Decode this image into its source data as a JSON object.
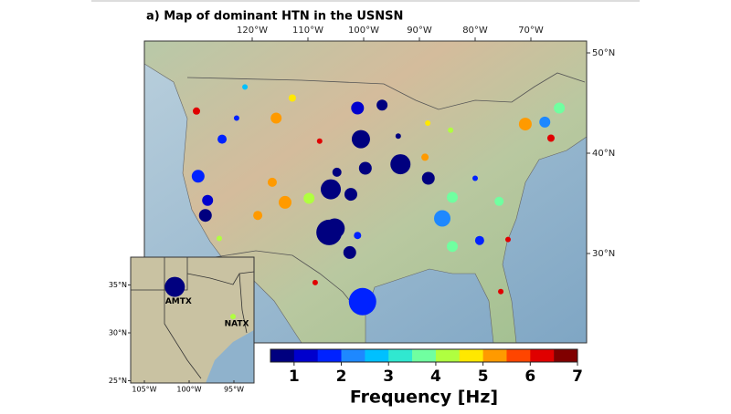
{
  "map": {
    "title": "a) Map of dominant HTN in the USNSN",
    "lon_ticks": [
      {
        "value": -120,
        "label": "120°W"
      },
      {
        "value": -110,
        "label": "110°W"
      },
      {
        "value": -100,
        "label": "100°W"
      },
      {
        "value": -90,
        "label": "90°W"
      },
      {
        "value": -80,
        "label": "80°W"
      },
      {
        "value": -70,
        "label": "70°W"
      }
    ],
    "lat_ticks": [
      {
        "value": 50,
        "label": "50°N"
      },
      {
        "value": 40,
        "label": "40°N"
      },
      {
        "value": 30,
        "label": "30°N"
      }
    ],
    "stations": {
      "lon": [
        -130.0,
        -121.3,
        -115.7,
        -112.8,
        -122.8,
        -125.4,
        -129.7,
        -128.0,
        -128.4,
        -114.1,
        -116.4,
        -109.8,
        -105.9,
        -102.3,
        -104.8,
        -99.7,
        -100.5,
        -93.4,
        -101.1,
        -96.7,
        -106.2,
        -105.2,
        -102.5,
        -100.2,
        -101.1,
        -88.4,
        -85.9,
        -84.1,
        -84.1,
        -75.7,
        -79.2,
        -71.0,
        -67.5,
        -64.9,
        -66.4,
        -74.1,
        -89.0,
        -107.9,
        -125.9,
        -108.7,
        -119.0,
        -93.8,
        -80.0,
        -88.5,
        -84.4,
        -75.4
      ],
      "lat": [
        44.2,
        46.6,
        43.5,
        45.5,
        43.5,
        41.4,
        37.7,
        35.3,
        33.8,
        35.1,
        37.1,
        35.5,
        36.4,
        35.9,
        38.1,
        38.5,
        41.4,
        38.9,
        44.5,
        44.8,
        32.1,
        32.5,
        30.1,
        25.2,
        31.8,
        37.5,
        33.5,
        35.6,
        30.7,
        35.2,
        31.3,
        42.9,
        43.1,
        44.5,
        41.5,
        31.4,
        39.6,
        41.2,
        31.5,
        27.1,
        33.8,
        41.7,
        37.5,
        43.0,
        42.3,
        26.2
      ],
      "frequency": [
        6.2,
        2.7,
        5.2,
        4.6,
        1.7,
        1.6,
        1.7,
        1.4,
        0.8,
        5.2,
        5.3,
        4.3,
        0.8,
        0.9,
        0.9,
        0.9,
        0.9,
        0.8,
        1.0,
        0.9,
        0.8,
        0.9,
        0.9,
        1.7,
        1.8,
        0.9,
        2.3,
        3.8,
        3.8,
        3.7,
        1.6,
        5.3,
        2.3,
        3.8,
        6.1,
        6.2,
        5.2,
        6.0,
        4.1,
        6.2,
        5.4,
        0.9,
        1.6,
        4.7,
        4.0,
        6.3
      ],
      "size": [
        4,
        3,
        6,
        4,
        3,
        5,
        7,
        6,
        7,
        7,
        5,
        6,
        11,
        7,
        5,
        7,
        10,
        11,
        7,
        6,
        14,
        11,
        7,
        15,
        4,
        7,
        9,
        6,
        6,
        5,
        5,
        7,
        6,
        6,
        4,
        3,
        4,
        3,
        3,
        3,
        5,
        3,
        3,
        3,
        3,
        3
      ]
    },
    "colorbar": {
      "label": "Frequency [Hz]",
      "lim": [
        0.5,
        7
      ],
      "ticks": [
        1,
        2,
        3,
        4,
        5,
        6,
        7
      ],
      "colors": [
        "#00007f",
        "#0000cd",
        "#0022ff",
        "#1e88ff",
        "#00c0ff",
        "#30e8d0",
        "#70ffa0",
        "#b0ff40",
        "#ffe800",
        "#ff9a00",
        "#ff4500",
        "#e00000",
        "#800000"
      ]
    },
    "inset": {
      "lon_ticks": [
        {
          "value": -105,
          "label": "105°W"
        },
        {
          "value": -100,
          "label": "100°W"
        },
        {
          "value": -95,
          "label": "95°W"
        }
      ],
      "lat_ticks": [
        {
          "value": 35,
          "label": "35°N"
        },
        {
          "value": 30,
          "label": "30°N"
        },
        {
          "value": 25,
          "label": "25°N"
        }
      ],
      "stations": [
        {
          "name": "AMTX",
          "lon": -101.6,
          "lat": 34.8,
          "frequency": 0.8,
          "size": 11
        },
        {
          "name": "NATX",
          "lon": -95.1,
          "lat": 31.7,
          "frequency": 4.2,
          "size": 3
        }
      ]
    }
  }
}
